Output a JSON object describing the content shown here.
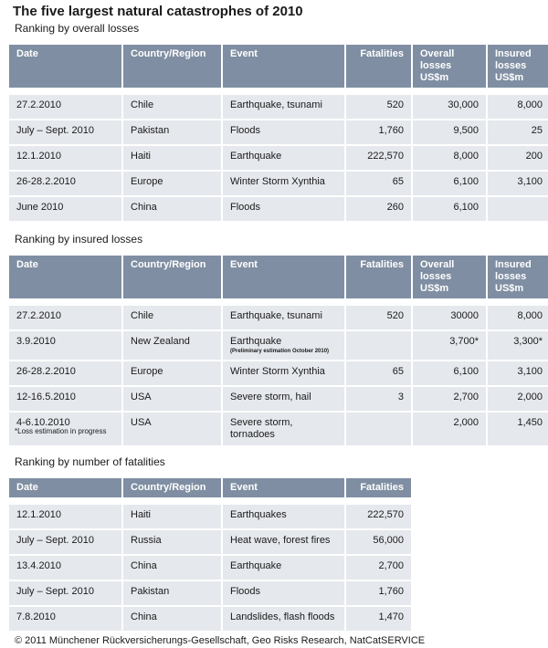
{
  "title": "The five largest natural catastrophes of 2010",
  "headers": {
    "date": "Date",
    "country": "Country/Region",
    "event": "Event",
    "fatalities": "Fatalities",
    "overall": "Overall losses US$m",
    "insured": "Insured losses US$m"
  },
  "table1": {
    "subtitle": "Ranking by overall losses",
    "rows": [
      {
        "date": "27.2.2010",
        "country": "Chile",
        "event": "Earthquake, tsunami",
        "fatalities": "520",
        "overall": "30,000",
        "insured": "8,000"
      },
      {
        "date": "July – Sept. 2010",
        "country": "Pakistan",
        "event": "Floods",
        "fatalities": "1,760",
        "overall": "9,500",
        "insured": "25"
      },
      {
        "date": "12.1.2010",
        "country": "Haiti",
        "event": "Earthquake",
        "fatalities": "222,570",
        "overall": "8,000",
        "insured": "200"
      },
      {
        "date": "26-28.2.2010",
        "country": "Europe",
        "event": "Winter Storm Xynthia",
        "fatalities": "65",
        "overall": "6,100",
        "insured": "3,100"
      },
      {
        "date": "June 2010",
        "country": "China",
        "event": "Floods",
        "fatalities": "260",
        "overall": "6,100",
        "insured": ""
      }
    ]
  },
  "table2": {
    "subtitle": "Ranking by insured losses",
    "rows": [
      {
        "date": "27.2.2010",
        "country": "Chile",
        "event": "Earthquake, tsunami",
        "note": "",
        "fatalities": "520",
        "overall": "30000",
        "insured": "8,000"
      },
      {
        "date": "3.9.2010",
        "country": "New Zealand",
        "event": "Earthquake",
        "note": "(Preliminary estimation October 2010)",
        "fatalities": "",
        "overall": "3,700*",
        "insured": "3,300*"
      },
      {
        "date": "26-28.2.2010",
        "country": "Europe",
        "event": "Winter Storm Xynthia",
        "note": "",
        "fatalities": "65",
        "overall": "6,100",
        "insured": "3,100"
      },
      {
        "date": "12-16.5.2010",
        "country": "USA",
        "event": "Severe storm, hail",
        "note": "",
        "fatalities": "3",
        "overall": "2,700",
        "insured": "2,000"
      },
      {
        "date": "4-6.10.2010",
        "country": "USA",
        "event": "Severe storm, tornadoes",
        "note": "",
        "fatalities": "",
        "overall": "2,000",
        "insured": "1,450"
      }
    ],
    "footnote": "*Loss estimation in progress"
  },
  "table3": {
    "subtitle": "Ranking by number of fatalities",
    "rows": [
      {
        "date": "12.1.2010",
        "country": "Haiti",
        "event": "Earthquakes",
        "fatalities": "222,570"
      },
      {
        "date": "July – Sept. 2010",
        "country": "Russia",
        "event": "Heat wave, forest fires",
        "fatalities": "56,000"
      },
      {
        "date": "13.4.2010",
        "country": "China",
        "event": "Earthquake",
        "fatalities": "2,700"
      },
      {
        "date": "July – Sept. 2010",
        "country": "Pakistan",
        "event": "Floods",
        "fatalities": "1,760"
      },
      {
        "date": "7.8.2010",
        "country": "China",
        "event": "Landslides, flash floods",
        "fatalities": "1,470"
      }
    ]
  },
  "footer": "© 2011 Münchener Rückversicherungs-Gesellschaft, Geo Risks Research, NatCatSERVICE"
}
